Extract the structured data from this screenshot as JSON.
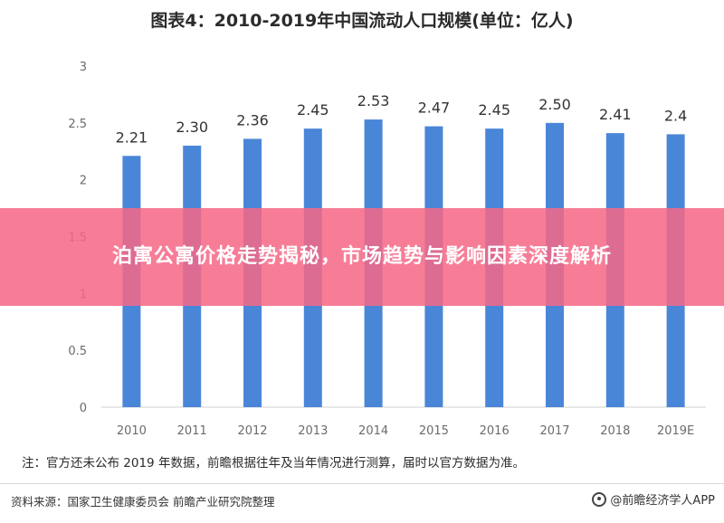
{
  "chart_data": {
    "type": "bar",
    "title": "图表4：2010-2019年中国流动人口规模(单位：亿人)",
    "categories": [
      "2010",
      "2011",
      "2012",
      "2013",
      "2014",
      "2015",
      "2016",
      "2017",
      "2018",
      "2019E"
    ],
    "values": [
      2.21,
      2.3,
      2.36,
      2.45,
      2.53,
      2.47,
      2.45,
      2.5,
      2.41,
      2.4
    ],
    "value_labels": [
      "2.21",
      "2.30",
      "2.36",
      "2.45",
      "2.53",
      "2.47",
      "2.45",
      "2.50",
      "2.41",
      "2.4"
    ],
    "yticks": [
      "0",
      "0.5",
      "1",
      "1.5",
      "2",
      "2.5",
      "3"
    ],
    "ylim": [
      0,
      3
    ],
    "bar_color": "#4a86d8",
    "grid": false
  },
  "note": "注：官方还未公布 2019 年数据，前瞻根据往年及当年情况进行测算，届时以官方数据为准。",
  "source": "资料来源：国家卫生健康委员会 前瞻产业研究院整理",
  "brand": "@前瞻经济学人APP",
  "banner": {
    "text": "泊寓公寓价格走势揭秘，市场趋势与影响因素深度解析"
  }
}
